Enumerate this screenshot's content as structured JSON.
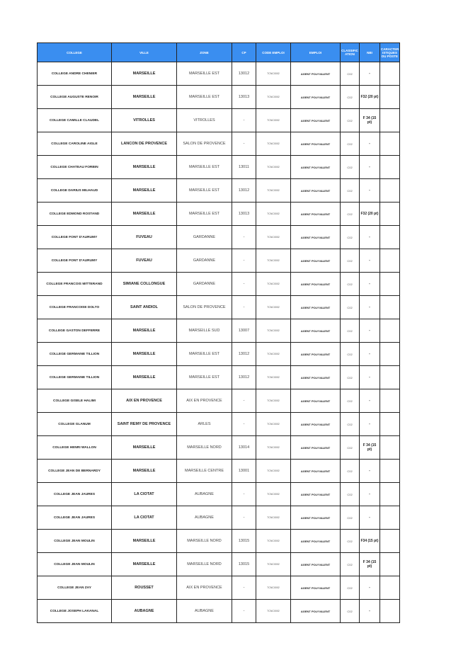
{
  "headers": [
    "COLLEGE",
    "VILLE",
    "ZONE",
    "CP",
    "CODE EMPLOI",
    "EMPLOI",
    "CLASSIFIC ATION",
    "NBI",
    "CARACTER ISTIQUES DU POSTE"
  ],
  "header_color": "#3a8ef0",
  "rows": [
    [
      "COLLEGE ANDRE CHENIER",
      "MARSEILLE",
      "MARSEILLE EST",
      "13012",
      "TCNC0002",
      "AGENT POLYVALENT",
      "C02",
      "-",
      ""
    ],
    [
      "COLLEGE AUGUSTE RENOIR",
      "MARSEILLE",
      "MARSEILLE EST",
      "13013",
      "TCNC0002",
      "AGENT POLYVALENT",
      "C02",
      "F32 (20 pt)",
      ""
    ],
    [
      "COLLEGE CAMILLE CLAUDEL",
      "VITROLLES",
      "VITROLLES",
      "-",
      "TCNC0002",
      "AGENT POLYVALENT",
      "C02",
      "F 34 (15 pt)",
      ""
    ],
    [
      "COLLEGE CAROLINE AIGLE",
      "LANCON DE PROVENCE",
      "SALON DE PROVENCE",
      "-",
      "TCNC0002",
      "AGENT POLYVALENT",
      "C02",
      "-",
      ""
    ],
    [
      "COLLEGE CHATEAU FORBIN",
      "MARSEILLE",
      "MARSEILLE EST",
      "13011",
      "TCNC0002",
      "AGENT POLYVALENT",
      "C02",
      "-",
      ""
    ],
    [
      "COLLEGE DARIUS MILHAUD",
      "MARSEILLE",
      "MARSEILLE EST",
      "13012",
      "TCNC0002",
      "AGENT POLYVALENT",
      "C02",
      "-",
      ""
    ],
    [
      "COLLEGE EDMOND ROSTAND",
      "MARSEILLE",
      "MARSEILLE EST",
      "13013",
      "TCNC0002",
      "AGENT POLYVALENT",
      "C02",
      "F32 (20 pt)",
      ""
    ],
    [
      "COLLEGE FONT D'AURUMY",
      "FUVEAU",
      "GARDANNE",
      "-",
      "TCNC0002",
      "AGENT POLYVALENT",
      "C02",
      "-",
      ""
    ],
    [
      "COLLEGE FONT D'AURUMY",
      "FUVEAU",
      "GARDANNE",
      "-",
      "TCNC0002",
      "AGENT POLYVALENT",
      "C02",
      "-",
      ""
    ],
    [
      "COLLEGE FRANCOIS MITTERAND",
      "SIMIANE COLLONGUE",
      "GARDANNE",
      "-",
      "TCNC0002",
      "AGENT POLYVALENT",
      "C02",
      "-",
      ""
    ],
    [
      "COLLEGE FRANCOISE DOLTO",
      "SAINT ANDIOL",
      "SALON DE PROVENCE",
      "-",
      "TCNC0002",
      "AGENT POLYVALENT",
      "C02",
      "-",
      ""
    ],
    [
      "COLLEGE GASTON DEFFERRE",
      "MARSEILLE",
      "MARSEILLE SUD",
      "13007",
      "TCNC0002",
      "AGENT POLYVALENT",
      "C02",
      "-",
      ""
    ],
    [
      "COLLEGE GERMAINE TILLION",
      "MARSEILLE",
      "MARSEILLE EST",
      "13012",
      "TCNC0002",
      "AGENT POLYVALENT",
      "C02",
      "-",
      ""
    ],
    [
      "COLLEGE GERMAINE TILLION",
      "MARSEILLE",
      "MARSEILLE EST",
      "13012",
      "TCNC0002",
      "AGENT POLYVALENT",
      "C02",
      "-",
      ""
    ],
    [
      "COLLEGE GISELE HALIMI",
      "AIX EN PROVENCE",
      "AIX EN PROVENCE",
      "-",
      "TCNC0002",
      "AGENT POLYVALENT",
      "C02",
      "-",
      ""
    ],
    [
      "COLLEGE GLANUM",
      "SAINT REMY DE PROVENCE",
      "ARLES",
      "-",
      "TCNC0002",
      "AGENT POLYVALENT",
      "C02",
      "-",
      ""
    ],
    [
      "COLLEGE HENRI WALLON",
      "MARSEILLE",
      "MARSEILLE NORD",
      "13014",
      "TCNC0002",
      "AGENT POLYVALENT",
      "C02",
      "F 34 (15 pt)",
      ""
    ],
    [
      "COLLEGE JEAN DE BERNARDY",
      "MARSEILLE",
      "MARSEILLE CENTRE",
      "13001",
      "TCNC0002",
      "AGENT POLYVALENT",
      "C02",
      "-",
      ""
    ],
    [
      "COLLEGE JEAN JAURES",
      "LA CIOTAT",
      "AUBAGNE",
      "-",
      "TCNC0002",
      "AGENT POLYVALENT",
      "C02",
      "-",
      ""
    ],
    [
      "COLLEGE JEAN JAURES",
      "LA CIOTAT",
      "AUBAGNE",
      "-",
      "TCNC0002",
      "AGENT POLYVALENT",
      "C02",
      "-",
      ""
    ],
    [
      "COLLEGE JEAN MOULIN",
      "MARSEILLE",
      "MARSEILLE NORD",
      "13015",
      "TCNC0002",
      "AGENT POLYVALENT",
      "C02",
      "F34 (15 pt)",
      ""
    ],
    [
      "COLLEGE JEAN MOULIN",
      "MARSEILLE",
      "MARSEILLE NORD",
      "13015",
      "TCNC0002",
      "AGENT POLYVALENT",
      "C02",
      "F 34 (15 pt)",
      ""
    ],
    [
      "COLLEGE JEAN ZAY",
      "ROUSSET",
      "AIX EN PROVENCE",
      "-",
      "TCNC0002",
      "AGENT POLYVALENT",
      "C02",
      "-",
      ""
    ],
    [
      "COLLEGE JOSEPH LAKANAL",
      "AUBAGNE",
      "AUBAGNE",
      "-",
      "TCNC0002",
      "AGENT POLYVALENT",
      "C02",
      "-",
      ""
    ]
  ]
}
